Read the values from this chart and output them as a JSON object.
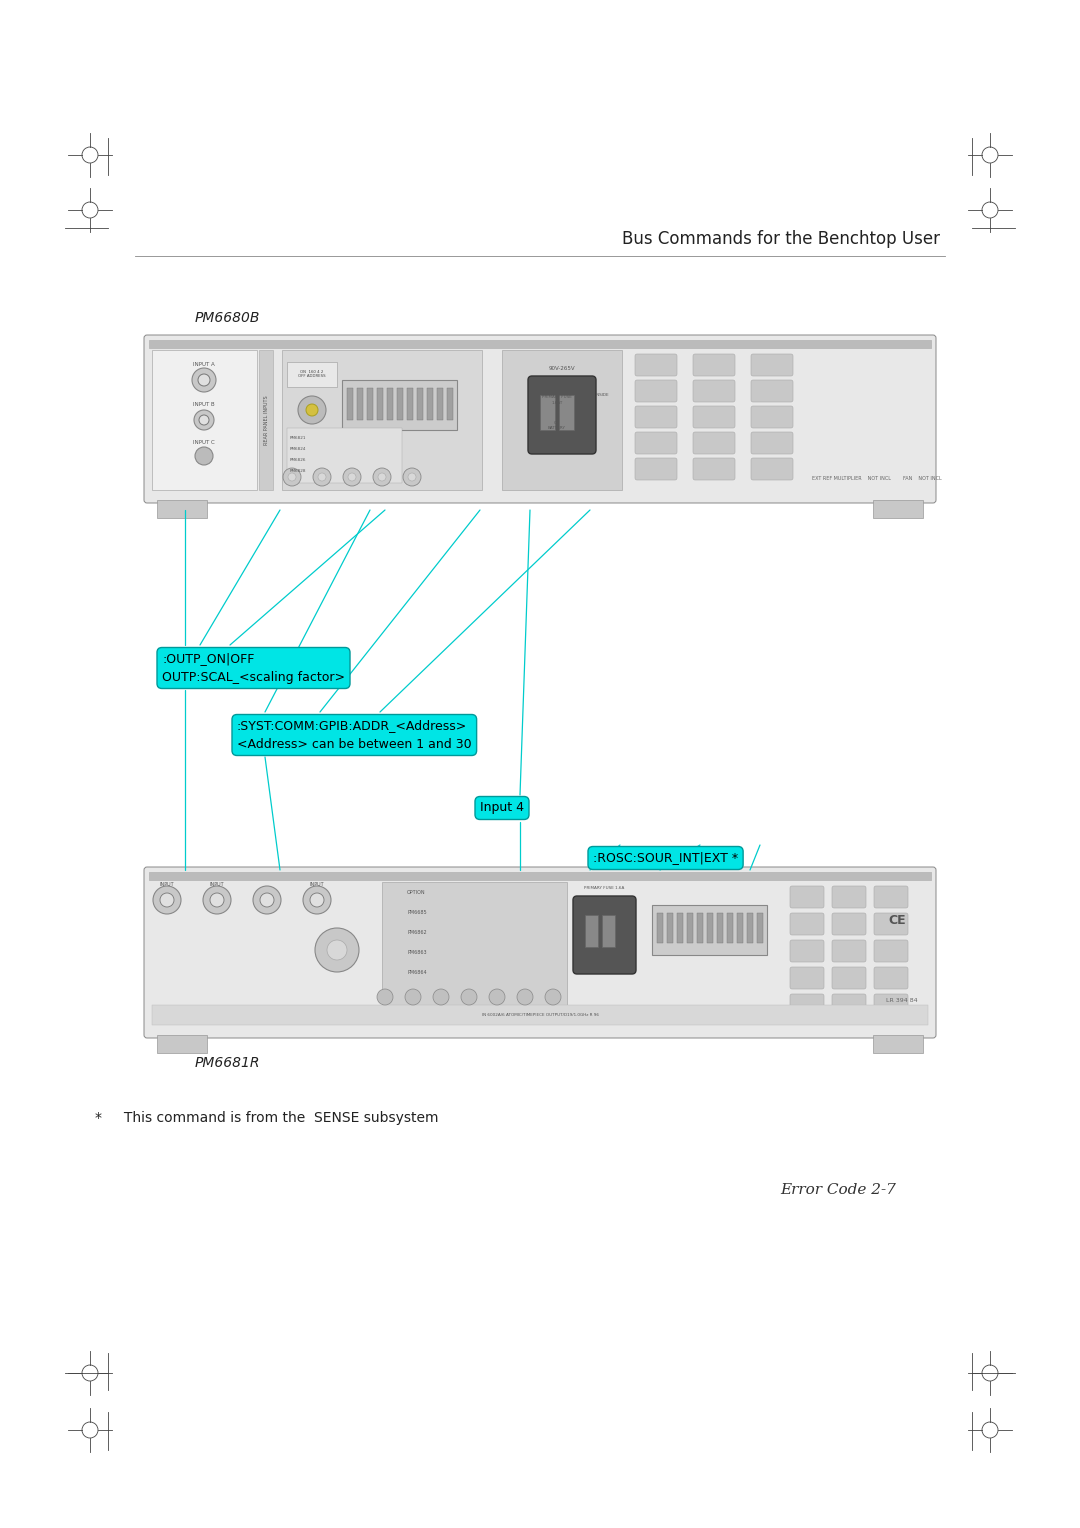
{
  "bg_color": "#ffffff",
  "page_width": 10.8,
  "page_height": 15.28,
  "header_text": "Bus Commands for the Benchtop User",
  "footer_text": "Error Code 2-7",
  "note_text": "*     This command is from the  SENSE subsystem",
  "label_pm6680b": "PM6680B",
  "label_pm6681r": "PM6681R",
  "cyan_bg": "#00E5E5",
  "cyan_edge": "#009999",
  "line_color": "#00CCCC",
  "reg_mark_color": "#444444",
  "text_color": "#222222",
  "instrument_body": "#e8e8e8",
  "instrument_dark": "#c0c0c0",
  "instrument_darker": "#a0a0a0",
  "instrument_light": "#f0f0f0",
  "instrument_border": "#888888",
  "outp_box_text": ":OUTP_ON|OFF\nOUTP:SCAL_<scaling factor>",
  "syst_box_line1": ":SYST:COMM:GPIB:ADDR_<Address>",
  "syst_box_line2": "<Address> can be between 1 and 30",
  "input4_text": "Input 4",
  "rosc_text": ":ROSC:SOUR_INT|EXT *",
  "lw_instrument": 0.7,
  "lw_cyan": 0.9,
  "lw_reg": 0.6
}
